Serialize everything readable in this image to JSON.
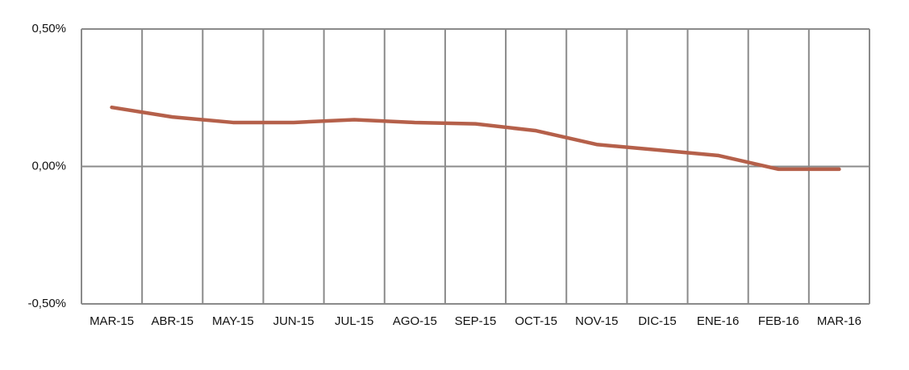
{
  "chart_data": {
    "type": "line",
    "categories": [
      "MAR-15",
      "ABR-15",
      "MAY-15",
      "JUN-15",
      "JUL-15",
      "AGO-15",
      "SEP-15",
      "OCT-15",
      "NOV-15",
      "DIC-15",
      "ENE-16",
      "FEB-16",
      "MAR-16"
    ],
    "series": [
      {
        "color": "#b5604a",
        "values": [
          0.215,
          0.18,
          0.16,
          0.16,
          0.17,
          0.16,
          0.155,
          0.13,
          0.08,
          0.06,
          0.04,
          -0.01,
          -0.01
        ]
      }
    ],
    "ylim": [
      -0.5,
      0.5
    ],
    "yticks": [
      {
        "value": -0.5,
        "label": "-0,50%"
      },
      {
        "value": 0,
        "label": "0,00%"
      },
      {
        "value": 0.5,
        "label": "0,50%"
      }
    ],
    "grid": true
  }
}
